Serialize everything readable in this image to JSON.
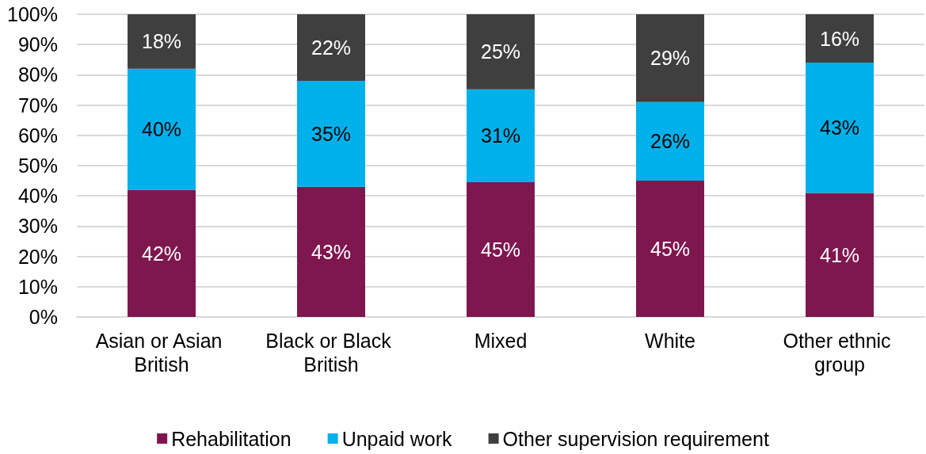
{
  "chart_data": {
    "type": "bar",
    "stacked": true,
    "categories": [
      "Asian or Asian British",
      "Black or Black British",
      "Mixed",
      "White",
      "Other ethnic group"
    ],
    "series": [
      {
        "name": "Rehabilitation",
        "color": "#7f174f",
        "values": [
          42,
          43,
          44.5,
          45,
          41
        ],
        "value_labels": [
          "42%",
          "43%",
          "45%",
          "45%",
          "41%"
        ]
      },
      {
        "name": "Unpaid work",
        "color": "#00b0ea",
        "values": [
          40,
          35,
          30.7,
          26,
          43
        ],
        "value_labels": [
          "40%",
          "35%",
          "31%",
          "26%",
          "43%"
        ]
      },
      {
        "name": "Other supervision requirement",
        "color": "#3f3f3f",
        "values": [
          18,
          22,
          24.8,
          29,
          16
        ],
        "value_labels": [
          "18%",
          "22%",
          "25%",
          "29%",
          "16%"
        ]
      }
    ],
    "ylim": [
      0,
      100
    ],
    "yticks": [
      {
        "value": 0,
        "label": "0%"
      },
      {
        "value": 10,
        "label": "10%"
      },
      {
        "value": 20,
        "label": "20%"
      },
      {
        "value": 30,
        "label": "30%"
      },
      {
        "value": 40,
        "label": "40%"
      },
      {
        "value": 50,
        "label": "50%"
      },
      {
        "value": 60,
        "label": "60%"
      },
      {
        "value": 70,
        "label": "70%"
      },
      {
        "value": 80,
        "label": "80%"
      },
      {
        "value": 90,
        "label": "90%"
      },
      {
        "value": 100,
        "label": "100%"
      }
    ],
    "grid": "y",
    "legend": "bottom"
  }
}
